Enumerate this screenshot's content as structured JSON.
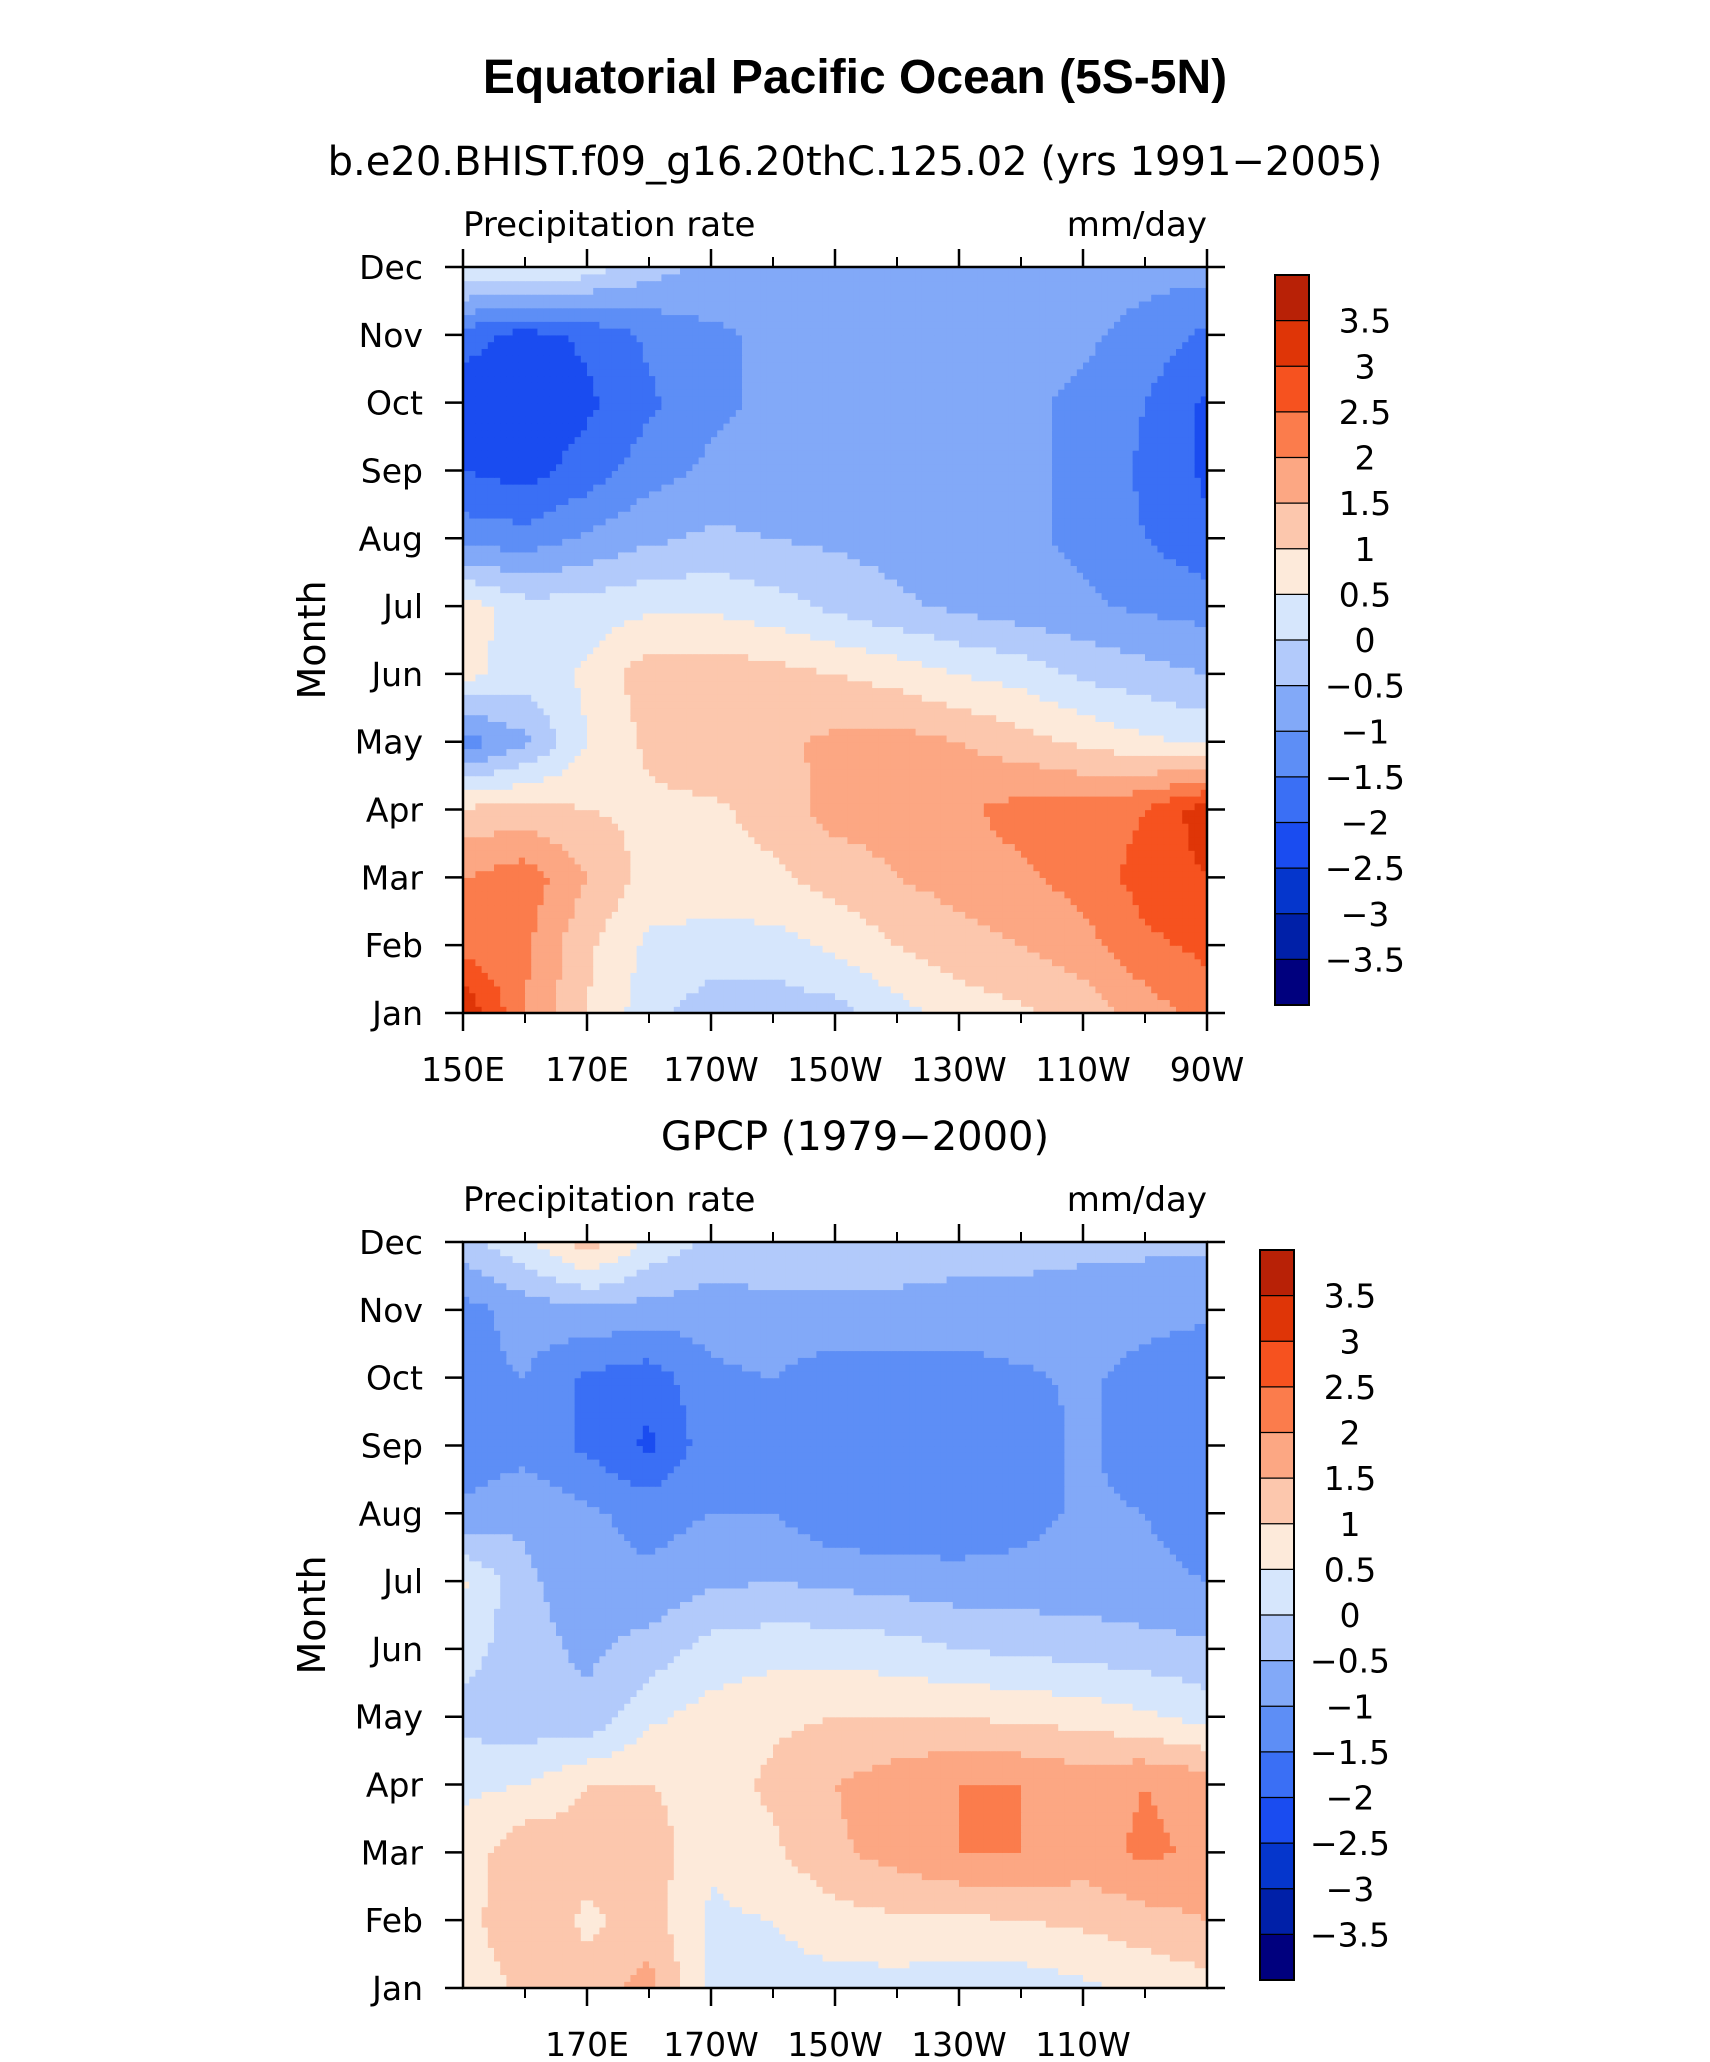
{
  "figure": {
    "title": "Equatorial Pacific Ocean (5S-5N)"
  },
  "colorbar_levels": [
    "3.5",
    "3",
    "2.5",
    "2",
    "1.5",
    "1",
    "0.5",
    "0",
    "−0.5",
    "−1",
    "−1.5",
    "−2",
    "−2.5",
    "−3",
    "−3.5"
  ],
  "colors": {
    "palette": [
      "#00007e",
      "#0020a8",
      "#0536cc",
      "#1a4cf0",
      "#3a6ff5",
      "#5d8ef6",
      "#82a9f8",
      "#b2cafb",
      "#d6e6fc",
      "#fdeada",
      "#fcc7ad",
      "#fca783",
      "#fb7c4c",
      "#f6521f",
      "#df3507",
      "#b82106",
      "#860604"
    ]
  },
  "chart_data": [
    {
      "type": "heatmap",
      "title": "b.e20.BHIST.f09_g16.20thC.125.02 (yrs 1991−2005)",
      "left_label": "Precipitation rate",
      "right_label": "mm/day",
      "ylabel": "Month",
      "xlabel": "",
      "x_tick_labels": [
        "150E",
        "170E",
        "170W",
        "150W",
        "130W",
        "110W",
        "90W"
      ],
      "x_tick_values": [
        150,
        170,
        190,
        210,
        230,
        250,
        270
      ],
      "xlim": [
        150,
        270
      ],
      "y_tick_labels": [
        "Jan",
        "Feb",
        "Mar",
        "Apr",
        "May",
        "Jun",
        "Jul",
        "Aug",
        "Sep",
        "Oct",
        "Nov",
        "Dec"
      ],
      "ylim": [
        1,
        12
      ],
      "colorbar_ticks": [
        "3.5",
        "3",
        "2.5",
        "2",
        "1.5",
        "1",
        "0.5",
        "0",
        "−0.5",
        "−1",
        "−1.5",
        "−2",
        "−2.5",
        "−3",
        "−3.5"
      ],
      "levels": [
        -4,
        -3.5,
        -3,
        -2.5,
        -2,
        -1.5,
        -1,
        -0.5,
        0,
        0.5,
        1,
        1.5,
        2,
        2.5,
        3,
        3.5,
        4
      ],
      "x": [
        150,
        160,
        170,
        180,
        190,
        200,
        210,
        220,
        230,
        240,
        250,
        260,
        270
      ],
      "y": [
        1,
        2,
        3,
        4,
        5,
        6,
        7,
        8,
        9,
        10,
        11,
        12
      ],
      "z": [
        [
          3.5,
          2.0,
          1.0,
          0.2,
          -0.3,
          -0.3,
          -0.2,
          0.3,
          0.7,
          0.9,
          1.2,
          1.7,
          2.3
        ],
        [
          2.3,
          2.1,
          1.1,
          0.4,
          0.3,
          0.3,
          0.6,
          1.0,
          1.3,
          1.5,
          1.8,
          2.4,
          2.6
        ],
        [
          2.0,
          2.3,
          1.5,
          0.8,
          0.8,
          0.9,
          1.2,
          1.5,
          1.7,
          1.9,
          2.2,
          2.7,
          3.0
        ],
        [
          1.1,
          1.2,
          1.0,
          0.9,
          0.9,
          1.2,
          1.7,
          1.7,
          1.9,
          2.2,
          2.2,
          2.5,
          3.3
        ],
        [
          -1.3,
          -0.6,
          0.5,
          1.1,
          1.4,
          1.4,
          1.6,
          1.7,
          1.5,
          1.2,
          0.9,
          0.6,
          0.4
        ],
        [
          0.7,
          0.2,
          0.6,
          1.3,
          1.3,
          1.2,
          1.0,
          0.8,
          0.5,
          0.3,
          -0.1,
          -0.3,
          -0.5
        ],
        [
          0.8,
          0.2,
          0.2,
          0.4,
          0.4,
          0.2,
          -0.1,
          -0.4,
          -0.6,
          -0.8,
          -0.9,
          -1.1,
          -1.2
        ],
        [
          -1.2,
          -1.3,
          -0.9,
          -0.6,
          -0.4,
          -0.5,
          -0.6,
          -0.7,
          -0.8,
          -0.9,
          -1.1,
          -1.5,
          -1.9
        ],
        [
          -2.0,
          -2.2,
          -1.8,
          -1.2,
          -0.9,
          -0.8,
          -0.8,
          -0.8,
          -0.8,
          -0.9,
          -1.1,
          -1.6,
          -2.1
        ],
        [
          -2.3,
          -2.3,
          -2.1,
          -1.6,
          -1.1,
          -0.9,
          -0.9,
          -0.9,
          -0.9,
          -0.9,
          -1.1,
          -1.5,
          -2.1
        ],
        [
          -1.8,
          -2.2,
          -1.9,
          -1.4,
          -1.1,
          -0.9,
          -0.9,
          -0.9,
          -0.9,
          -0.9,
          -0.9,
          -1.2,
          -1.6
        ],
        [
          0.6,
          0.6,
          0.3,
          -0.3,
          -0.6,
          -0.8,
          -0.8,
          -0.8,
          -0.8,
          -0.8,
          -0.8,
          -0.8,
          -0.8
        ]
      ]
    },
    {
      "type": "heatmap",
      "title": "GPCP (1979−2000)",
      "left_label": "Precipitation rate",
      "right_label": "mm/day",
      "ylabel": "Month",
      "xlabel": "",
      "x_tick_labels": [
        "170E",
        "170W",
        "150W",
        "130W",
        "110W"
      ],
      "x_tick_values": [
        170,
        190,
        210,
        230,
        250
      ],
      "xlim": [
        150,
        270
      ],
      "y_tick_labels": [
        "Jan",
        "Feb",
        "Mar",
        "Apr",
        "May",
        "Jun",
        "Jul",
        "Aug",
        "Sep",
        "Oct",
        "Nov",
        "Dec"
      ],
      "ylim": [
        1,
        12
      ],
      "colorbar_ticks": [
        "3.5",
        "3",
        "2.5",
        "2",
        "1.5",
        "1",
        "0.5",
        "0",
        "−0.5",
        "−1",
        "−1.5",
        "−2",
        "−2.5",
        "−3",
        "−3.5"
      ],
      "levels": [
        -4,
        -3.5,
        -3,
        -2.5,
        -2,
        -1.5,
        -1,
        -0.5,
        0,
        0.5,
        1,
        1.5,
        2,
        2.5,
        3,
        3.5,
        4
      ],
      "x": [
        150,
        160,
        170,
        180,
        190,
        200,
        210,
        220,
        230,
        240,
        250,
        260,
        270
      ],
      "y": [
        1,
        2,
        3,
        4,
        5,
        6,
        7,
        8,
        9,
        10,
        11,
        12
      ],
      "z": [
        [
          0.7,
          1.1,
          1.2,
          1.7,
          0.4,
          0.3,
          0.3,
          0.3,
          0.2,
          0.2,
          0.4,
          0.6,
          0.8
        ],
        [
          0.8,
          1.4,
          0.9,
          1.2,
          0.4,
          0.5,
          0.8,
          0.9,
          0.9,
          1.0,
          1.1,
          1.3,
          1.5
        ],
        [
          0.7,
          1.4,
          1.2,
          1.3,
          0.6,
          0.9,
          1.4,
          1.7,
          2.0,
          2.0,
          1.8,
          2.1,
          1.9
        ],
        [
          0.4,
          0.5,
          1.0,
          1.0,
          0.8,
          1.1,
          1.5,
          1.8,
          2.0,
          2.0,
          1.8,
          2.0,
          1.8
        ],
        [
          -0.2,
          -0.3,
          -0.4,
          0.4,
          0.7,
          0.9,
          1.0,
          1.0,
          1.0,
          0.9,
          0.8,
          0.6,
          0.3
        ],
        [
          0.2,
          -0.3,
          -0.6,
          -0.3,
          0.2,
          0.3,
          0.3,
          0.2,
          0.0,
          -0.1,
          -0.2,
          -0.3,
          -0.4
        ],
        [
          0.6,
          -0.4,
          -0.8,
          -0.9,
          -0.6,
          -0.5,
          -0.6,
          -0.7,
          -0.8,
          -0.8,
          -0.8,
          -0.9,
          -1.0
        ],
        [
          -0.9,
          -0.6,
          -0.9,
          -1.2,
          -1.0,
          -1.0,
          -1.4,
          -1.5,
          -1.4,
          -1.2,
          -0.9,
          -1.0,
          -1.2
        ],
        [
          -1.3,
          -1.2,
          -1.6,
          -2.1,
          -1.2,
          -1.0,
          -1.3,
          -1.4,
          -1.4,
          -1.3,
          -0.9,
          -1.3,
          -1.4
        ],
        [
          -1.1,
          -1.0,
          -1.6,
          -1.8,
          -1.1,
          -1.0,
          -1.3,
          -1.3,
          -1.3,
          -1.1,
          -0.9,
          -1.2,
          -1.4
        ],
        [
          -1.2,
          -0.8,
          -0.6,
          -0.7,
          -0.8,
          -0.6,
          -0.6,
          -0.6,
          -0.6,
          -0.6,
          -0.7,
          -0.8,
          -0.9
        ],
        [
          -0.2,
          0.4,
          1.3,
          0.4,
          -0.1,
          -0.2,
          -0.3,
          -0.3,
          -0.4,
          -0.4,
          -0.4,
          -0.4,
          -0.4
        ]
      ]
    }
  ]
}
